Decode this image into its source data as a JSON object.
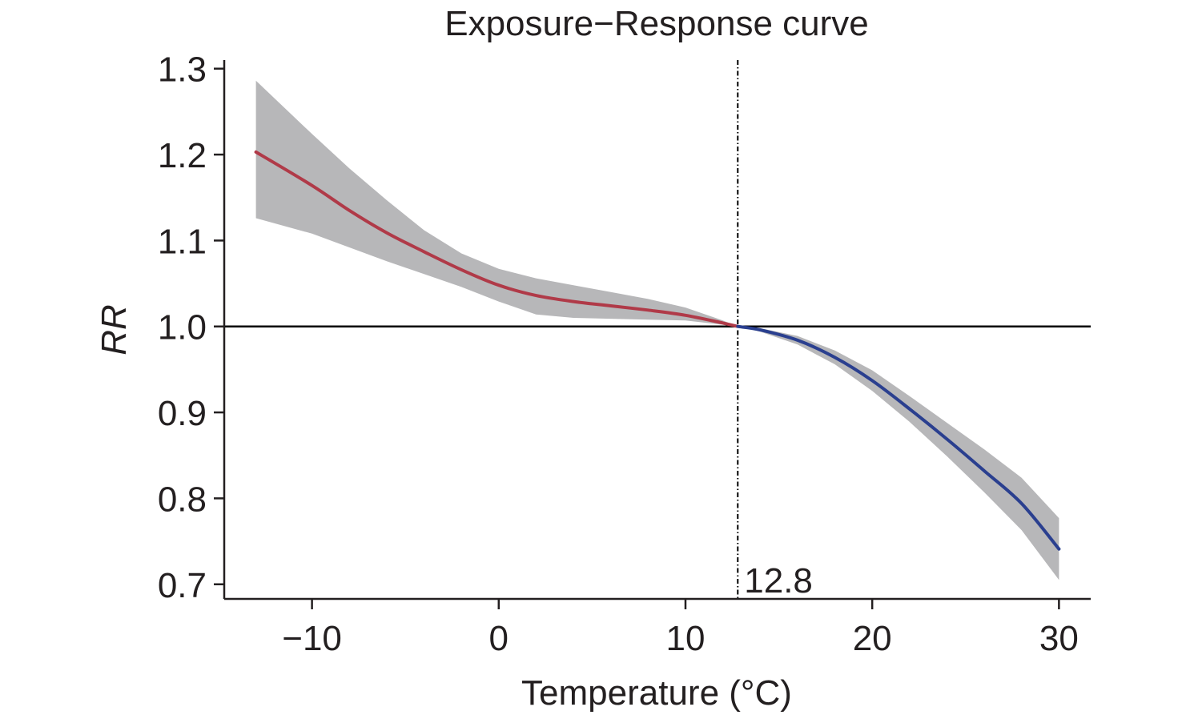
{
  "chart_data": {
    "type": "line",
    "title": "Exposure−Response curve",
    "xlabel": "Temperature (°C)",
    "ylabel": "RR",
    "xlim": [
      -14.7,
      31.7
    ],
    "ylim": [
      0.683,
      1.31
    ],
    "xticks": [
      -10,
      0,
      10,
      20,
      30
    ],
    "xtick_labels": [
      "−10",
      "0",
      "10",
      "20",
      "30"
    ],
    "yticks": [
      0.7,
      0.8,
      0.9,
      1.0,
      1.1,
      1.2,
      1.3
    ],
    "ytick_labels": [
      "0.7",
      "0.8",
      "0.9",
      "1.0",
      "1.1",
      "1.2",
      "1.3"
    ],
    "reference_line_y": 1.0,
    "threshold": {
      "x": 12.8,
      "label": "12.8"
    },
    "grid": false,
    "legend": "none",
    "series": [
      {
        "color": "#b03a48",
        "x": [
          -13,
          -10,
          -8,
          -6,
          -4,
          -2,
          0,
          2,
          4,
          6,
          8,
          10,
          12,
          12.8
        ],
        "y": [
          1.203,
          1.164,
          1.135,
          1.109,
          1.087,
          1.066,
          1.048,
          1.036,
          1.029,
          1.024,
          1.019,
          1.013,
          1.004,
          1.0
        ],
        "ci_lower": [
          1.126,
          1.108,
          1.092,
          1.076,
          1.061,
          1.046,
          1.029,
          1.014,
          1.01,
          1.009,
          1.008,
          1.007,
          1.002,
          1.0
        ],
        "ci_upper": [
          1.286,
          1.224,
          1.184,
          1.147,
          1.112,
          1.085,
          1.067,
          1.056,
          1.048,
          1.04,
          1.032,
          1.022,
          1.007,
          1.0
        ]
      },
      {
        "color": "#2a3f8f",
        "x": [
          12.8,
          14,
          16,
          18,
          20,
          22,
          24,
          26,
          28,
          30
        ],
        "y": [
          1.0,
          0.996,
          0.984,
          0.964,
          0.937,
          0.904,
          0.869,
          0.832,
          0.794,
          0.741
        ],
        "ci_lower": [
          1.0,
          0.994,
          0.979,
          0.956,
          0.925,
          0.889,
          0.849,
          0.807,
          0.763,
          0.705
        ],
        "ci_upper": [
          1.0,
          0.998,
          0.989,
          0.972,
          0.949,
          0.919,
          0.888,
          0.857,
          0.824,
          0.777
        ]
      }
    ]
  },
  "colors": {
    "ci_band": "#b7b7b9",
    "axis": "#231f20",
    "text": "#231f20"
  }
}
